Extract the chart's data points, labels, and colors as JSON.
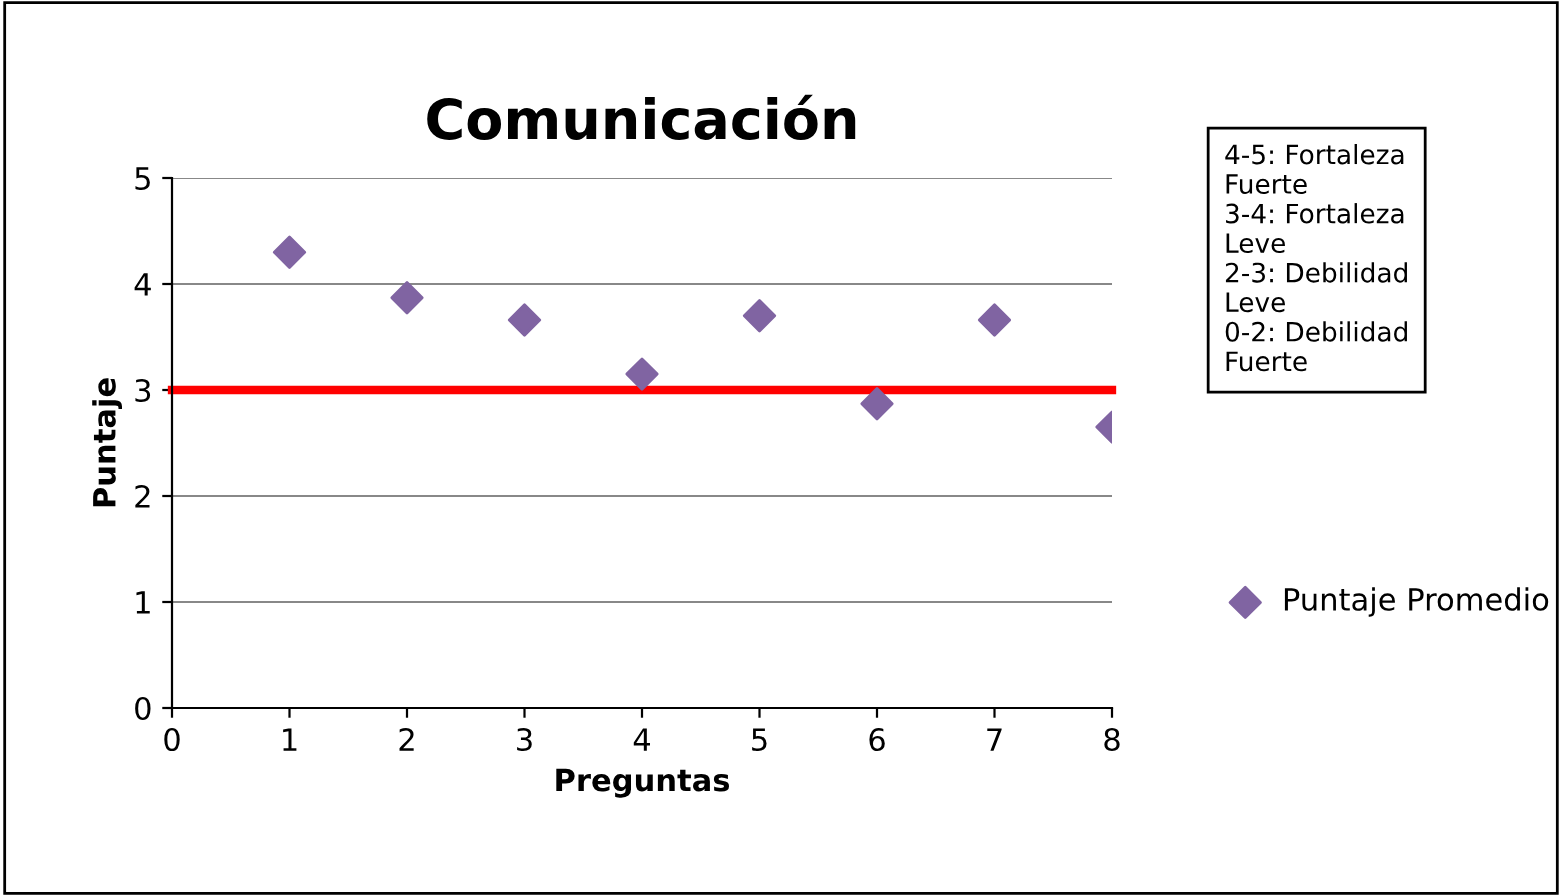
{
  "chart_data": {
    "type": "scatter",
    "title": "Comunicación",
    "xlabel": "Preguntas",
    "ylabel": "Puntaje",
    "x": [
      1,
      2,
      3,
      4,
      5,
      6,
      7,
      8
    ],
    "series": [
      {
        "name": "Puntaje Promedio",
        "color": "#8064a2",
        "values": [
          4.3,
          3.87,
          3.66,
          3.15,
          3.7,
          2.87,
          3.66,
          2.65
        ]
      }
    ],
    "xlim": [
      0,
      8
    ],
    "xticks": [
      0,
      1,
      2,
      3,
      4,
      5,
      6,
      7,
      8
    ],
    "ylim": [
      0,
      5
    ],
    "yticks": [
      0,
      1,
      2,
      3,
      4,
      5
    ],
    "ref_lines": [
      {
        "axis": "y",
        "value": 3,
        "color": "#ff0000"
      }
    ],
    "annotations": [
      "4-5: Fortaleza\nFuerte\n3-4: Fortaleza\nLeve\n2-3: Debilidad\nLeve\n0-2: Debilidad\nFuerte"
    ],
    "grid": "y",
    "legend": "right",
    "marker": "diamond"
  }
}
